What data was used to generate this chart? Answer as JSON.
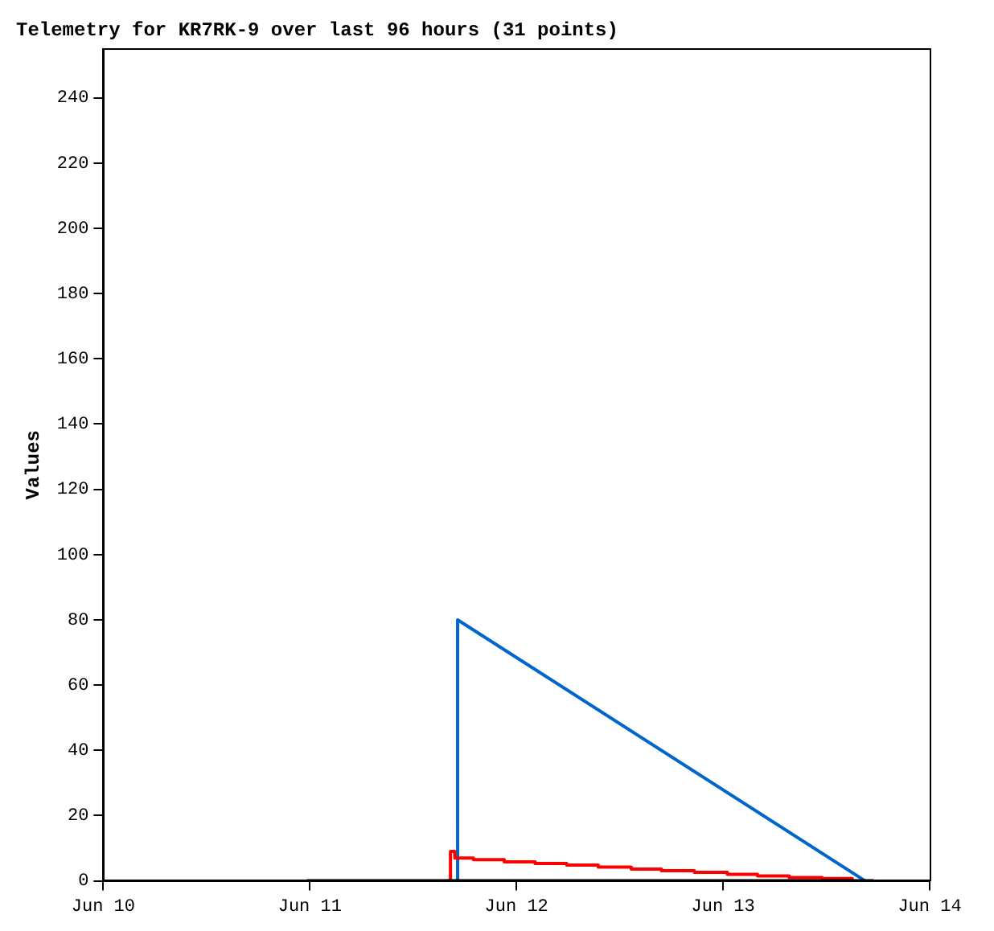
{
  "chart_data": {
    "type": "line",
    "title": "Telemetry for KR7RK-9 over last 96 hours (31 points)",
    "ylabel": "Values",
    "xlim": [
      "--06-10",
      "--06-14"
    ],
    "xticks": [
      {
        "value": "--06-10",
        "label": "Jun 10"
      },
      {
        "value": "--06-11",
        "label": "Jun 11"
      },
      {
        "value": "--06-12",
        "label": "Jun 12"
      },
      {
        "value": "--06-13",
        "label": "Jun 13"
      },
      {
        "value": "--06-14",
        "label": "Jun 14"
      }
    ],
    "ylim": [
      0,
      255
    ],
    "yticks": [
      0,
      20,
      40,
      60,
      80,
      100,
      120,
      140,
      160,
      180,
      200,
      220,
      240
    ],
    "grid": false,
    "legend": false,
    "marker": "none",
    "line_style": "solid",
    "series": [
      {
        "color": "#000000",
        "x": [
          "--06-10T23:40",
          "--06-13T17:30"
        ],
        "values": [
          0,
          0
        ]
      },
      {
        "type": "step",
        "color": "#ff0000",
        "x": [
          "--06-11T16:00",
          "--06-11T16:20",
          "--06-11T16:50",
          "--06-11T19:00",
          "--06-11T22:35",
          "--06-12T02:10",
          "--06-12T05:50",
          "--06-12T09:30",
          "--06-12T13:20",
          "--06-12T16:50",
          "--06-12T20:40",
          "--06-13T00:30",
          "--06-13T04:00",
          "--06-13T07:40",
          "--06-13T11:30",
          "--06-13T15:00"
        ],
        "values": [
          0,
          9,
          7,
          6.5,
          5.8,
          5.3,
          4.8,
          4.2,
          3.6,
          3.1,
          2.6,
          2,
          1.5,
          1,
          0.7,
          0.3
        ]
      },
      {
        "color": "#0066cc",
        "x": [
          "--06-11T17:10",
          "--06-11T17:10",
          "--06-13T16:30"
        ],
        "values": [
          0,
          80,
          0
        ]
      }
    ]
  }
}
